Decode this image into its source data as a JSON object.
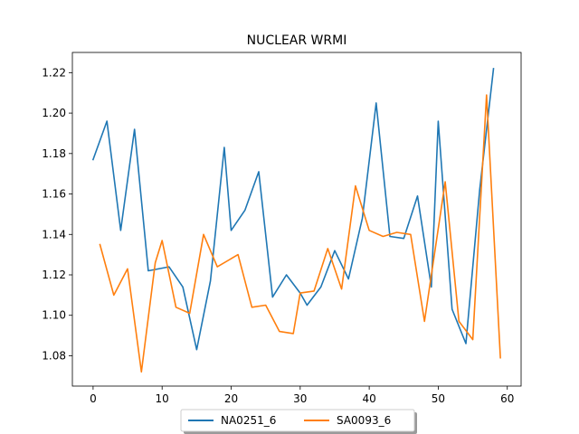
{
  "chart_data": {
    "type": "line",
    "title": "NUCLEAR WRMI",
    "xlabel": "",
    "ylabel": "",
    "xlim": [
      -3,
      62
    ],
    "ylim": [
      1.065,
      1.23
    ],
    "xticks": [
      "0",
      "10",
      "20",
      "30",
      "40",
      "50",
      "60"
    ],
    "yticks": [
      "1.08",
      "1.10",
      "1.12",
      "1.14",
      "1.16",
      "1.18",
      "1.20",
      "1.22"
    ],
    "grid": false,
    "legend": {
      "placement": "bottom-center",
      "columns": 2
    },
    "series": [
      {
        "name": "NA0251_6",
        "color": "#1f77b4",
        "x": [
          0,
          2,
          4,
          6,
          8,
          11,
          13,
          15,
          17,
          19,
          20,
          22,
          24,
          26,
          28,
          30,
          31,
          33,
          35,
          37,
          39,
          41,
          43,
          45,
          47,
          49,
          50,
          52,
          54,
          56,
          58
        ],
        "y": [
          1.177,
          1.196,
          1.142,
          1.192,
          1.122,
          1.124,
          1.114,
          1.083,
          1.117,
          1.183,
          1.142,
          1.152,
          1.171,
          1.109,
          1.12,
          1.111,
          1.105,
          1.114,
          1.132,
          1.118,
          1.148,
          1.205,
          1.139,
          1.138,
          1.159,
          1.114,
          1.196,
          1.103,
          1.086,
          1.162,
          1.222
        ]
      },
      {
        "name": "SA0093_6",
        "color": "#ff7f0e",
        "x": [
          1,
          3,
          5,
          7,
          9,
          10,
          12,
          14,
          16,
          18,
          21,
          23,
          25,
          27,
          29,
          30,
          32,
          34,
          36,
          38,
          40,
          42,
          44,
          46,
          48,
          51,
          53,
          55,
          57,
          59
        ],
        "y": [
          1.135,
          1.11,
          1.123,
          1.072,
          1.126,
          1.137,
          1.104,
          1.101,
          1.14,
          1.124,
          1.13,
          1.104,
          1.105,
          1.092,
          1.091,
          1.111,
          1.112,
          1.133,
          1.113,
          1.164,
          1.142,
          1.139,
          1.141,
          1.14,
          1.097,
          1.166,
          1.097,
          1.088,
          1.209,
          1.079
        ]
      }
    ]
  }
}
